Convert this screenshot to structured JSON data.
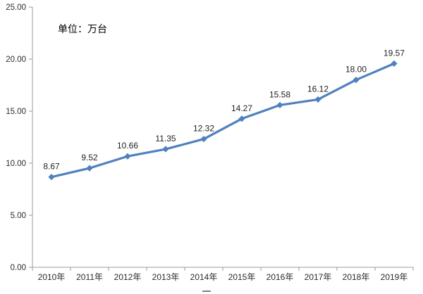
{
  "chart_data": {
    "type": "line",
    "title": "",
    "unit_label": "单位：万台",
    "categories": [
      "2010年",
      "2011年",
      "2012年",
      "2013年",
      "2014年",
      "2015年",
      "2016年",
      "2017年",
      "2018年",
      "2019年"
    ],
    "series": [
      {
        "name": "",
        "values": [
          8.67,
          9.52,
          10.66,
          11.35,
          12.32,
          14.27,
          15.58,
          16.12,
          18.0,
          19.57
        ]
      }
    ],
    "data_labels": [
      "8.67",
      "9.52",
      "10.66",
      "11.35",
      "12.32",
      "14.27",
      "15.58",
      "16.12",
      "18.00",
      "19.57"
    ],
    "y_axis": {
      "min": 0,
      "max": 25,
      "step": 5,
      "tick_labels": [
        "0.00",
        "5.00",
        "10.00",
        "15.00",
        "20.00",
        "25.00"
      ]
    },
    "x_axis": {
      "label": ""
    },
    "grid": false,
    "legend_position": "bottom-cropped",
    "colors": {
      "line": "#4F81BD",
      "marker": "#4F81BD",
      "axis": "#9B9B9B",
      "tick": "#9B9B9B",
      "label_text": "#1F1F1F",
      "axis_text": "#2B2B2B",
      "unit_text": "#000000",
      "legend_remnant": "#7F7F7F",
      "background": "#FFFFFF"
    }
  }
}
